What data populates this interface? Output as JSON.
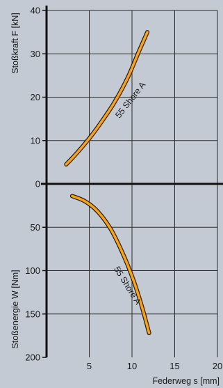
{
  "chart_data": [
    {
      "type": "line",
      "ylabel": "Stoßkraft F  [kN]",
      "ylim": [
        0,
        40
      ],
      "yticks": [
        0,
        10,
        20,
        30,
        40
      ],
      "grid": true,
      "series": [
        {
          "name": "55 Shore A",
          "color": "#f5a21c",
          "x": [
            2.3,
            3.5,
            5,
            6.5,
            8,
            9.5,
            10.8,
            11.8
          ],
          "y": [
            4.5,
            7,
            10.5,
            14.5,
            19,
            24.5,
            30.5,
            35
          ]
        }
      ]
    },
    {
      "type": "line",
      "xlabel": "Federweg s  [mm]",
      "ylabel": "Stoßenergie W  [Nm]",
      "xlim": [
        0,
        20
      ],
      "xticks": [
        5,
        10,
        15,
        20
      ],
      "ylim": [
        0,
        200
      ],
      "yticks": [
        50,
        100,
        150,
        200
      ],
      "y_inverted": true,
      "grid": true,
      "series": [
        {
          "name": "55 Shore A",
          "color": "#f5a21c",
          "x": [
            3,
            4.5,
            6,
            7.5,
            9,
            10.2,
            11.2,
            12
          ],
          "y": [
            14,
            20,
            32,
            52,
            82,
            112,
            143,
            172
          ]
        }
      ]
    }
  ]
}
